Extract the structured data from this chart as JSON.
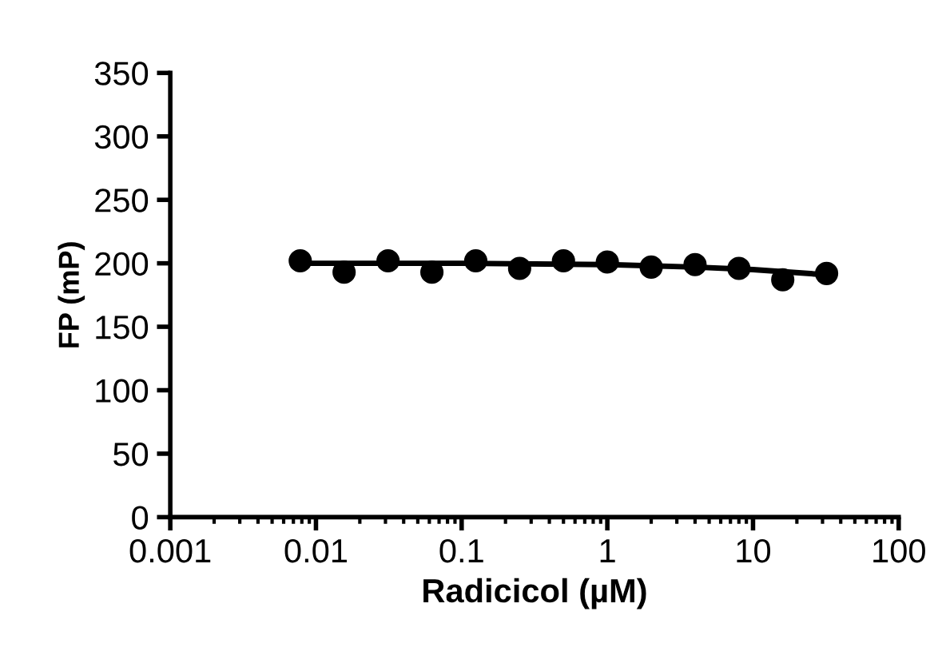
{
  "chart_data": {
    "type": "scatter",
    "xlabel": "Radicicol (µM)",
    "ylabel": "FP (mP)",
    "log": "x",
    "xlim": [
      0.001,
      100
    ],
    "xticks": [
      0.001,
      0.01,
      0.1,
      1,
      10,
      100
    ],
    "ylim": [
      0,
      350
    ],
    "yticks": [
      0,
      50,
      100,
      150,
      200,
      250,
      300,
      350
    ],
    "grid": false,
    "marker": "circle",
    "series": [
      {
        "color": "#000000",
        "x": [
          0.0078,
          0.0156,
          0.03125,
          0.0625,
          0.125,
          0.25,
          0.5,
          1,
          2,
          4,
          8,
          16,
          32
        ],
        "values": [
          202,
          193,
          202,
          193,
          202,
          196,
          202,
          201,
          197,
          199,
          196,
          187,
          192
        ]
      },
      {
        "type": "line",
        "color": "#000000",
        "marker": "none",
        "line_style": "solid",
        "x": [
          0.0078,
          0.1,
          1,
          4,
          10,
          32
        ],
        "values": [
          200,
          200,
          199,
          197,
          195,
          191
        ]
      }
    ]
  }
}
